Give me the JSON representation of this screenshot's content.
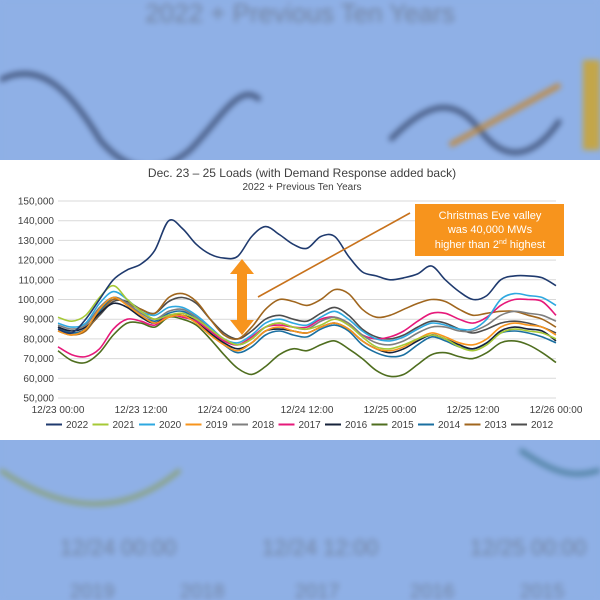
{
  "background": {
    "title": "2022 + Previous Ten Years",
    "ticks": [
      "12/24 00:00",
      "12/24 12:00",
      "12/25 00:00"
    ],
    "legend": [
      "2019",
      "2018",
      "2017",
      "2016",
      "2015"
    ]
  },
  "annotation": {
    "line1": "Christmas Eve valley",
    "line2": "was 40,000 MWs",
    "line3_pre": "higher than 2",
    "line3_sup": "nd",
    "line3_post": " highest",
    "fill": "#f7941d",
    "arrow_color": "#f7941d",
    "leader_color": "#c8721c"
  },
  "chart_data": {
    "type": "line",
    "title": "Dec. 23 – 25 Loads (with Demand Response added back)",
    "subtitle": "2022 + Previous Ten Years",
    "ylim": [
      50000,
      150000
    ],
    "yticks": [
      "150,000",
      "140,000",
      "130,000",
      "120,000",
      "110,000",
      "100,000",
      "90,000",
      "80,000",
      "70,000",
      "60,000",
      "50,000"
    ],
    "ytick_values": [
      150000,
      140000,
      130000,
      120000,
      110000,
      100000,
      90000,
      80000,
      70000,
      60000,
      50000
    ],
    "xlim": [
      0,
      72
    ],
    "xticks": [
      "12/23 00:00",
      "12/23 12:00",
      "12/24 00:00",
      "12/24 12:00",
      "12/25 00:00",
      "12/25 12:00",
      "12/26 00:00"
    ],
    "xtick_values": [
      0,
      12,
      24,
      36,
      48,
      60,
      72
    ],
    "x": [
      0,
      2,
      4,
      6,
      8,
      10,
      12,
      14,
      16,
      18,
      20,
      22,
      24,
      26,
      28,
      30,
      32,
      34,
      36,
      38,
      40,
      42,
      44,
      46,
      48,
      50,
      52,
      54,
      56,
      58,
      60,
      62,
      64,
      66,
      68,
      70,
      72
    ],
    "series": [
      {
        "name": "2022",
        "color": "#1f3a6e",
        "values": [
          85000,
          83000,
          90000,
          100000,
          110000,
          115000,
          118000,
          125000,
          140000,
          136000,
          128000,
          123000,
          121000,
          122000,
          132000,
          137000,
          133000,
          128000,
          126000,
          132000,
          132000,
          122000,
          114000,
          112000,
          110000,
          111000,
          113000,
          117000,
          110000,
          104000,
          100000,
          102000,
          110000,
          112000,
          112000,
          111000,
          107000
        ]
      },
      {
        "name": "2021",
        "color": "#a6c936",
        "values": [
          91000,
          89000,
          92000,
          101000,
          107000,
          100000,
          94000,
          90000,
          92000,
          93000,
          90000,
          85000,
          80000,
          77000,
          80000,
          86000,
          88000,
          86000,
          85000,
          87000,
          90000,
          87000,
          81000,
          76000,
          75000,
          77000,
          80000,
          82000,
          80000,
          76000,
          74000,
          77000,
          83000,
          85000,
          84000,
          83000,
          80000
        ]
      },
      {
        "name": "2020",
        "color": "#2ea8e0",
        "values": [
          88000,
          86000,
          88000,
          98000,
          104000,
          100000,
          94000,
          92000,
          96000,
          96000,
          92000,
          86000,
          80000,
          78000,
          82000,
          88000,
          90000,
          88000,
          87000,
          91000,
          94000,
          90000,
          84000,
          80000,
          79000,
          81000,
          85000,
          88000,
          87000,
          85000,
          85000,
          90000,
          100000,
          103000,
          102000,
          101000,
          97000
        ]
      },
      {
        "name": "2019",
        "color": "#f7941d",
        "values": [
          84000,
          82000,
          85000,
          95000,
          101000,
          97000,
          92000,
          88000,
          91000,
          92000,
          88000,
          82000,
          77000,
          74000,
          78000,
          84000,
          86000,
          84000,
          83000,
          86000,
          88000,
          85000,
          79000,
          75000,
          74000,
          76000,
          80000,
          83000,
          81000,
          78000,
          77000,
          80000,
          86000,
          88000,
          87000,
          86000,
          82000
        ]
      },
      {
        "name": "2018",
        "color": "#7f7f7f",
        "values": [
          87000,
          85000,
          87000,
          96000,
          101000,
          98000,
          93000,
          90000,
          94000,
          95000,
          91000,
          85000,
          80000,
          77000,
          80000,
          86000,
          88000,
          86000,
          85000,
          89000,
          91000,
          88000,
          82000,
          78000,
          77000,
          79000,
          83000,
          86000,
          86000,
          84000,
          84000,
          87000,
          92000,
          94000,
          93000,
          92000,
          89000
        ]
      },
      {
        "name": "2017",
        "color": "#e6197a",
        "values": [
          76000,
          72000,
          71000,
          75000,
          85000,
          90000,
          89000,
          87000,
          92000,
          91000,
          89000,
          84000,
          79000,
          77000,
          81000,
          86000,
          87000,
          86000,
          86000,
          90000,
          91000,
          87000,
          82000,
          80000,
          81000,
          84000,
          89000,
          93000,
          93000,
          90000,
          88000,
          91000,
          97000,
          100000,
          100000,
          99000,
          92000
        ]
      },
      {
        "name": "2016",
        "color": "#16223a",
        "values": [
          86000,
          84000,
          86000,
          93000,
          98000,
          96000,
          91000,
          88000,
          92000,
          92000,
          89000,
          83000,
          78000,
          75000,
          78000,
          84000,
          85000,
          84000,
          83000,
          86000,
          88000,
          85000,
          79000,
          75000,
          73000,
          75000,
          79000,
          82000,
          80000,
          77000,
          75000,
          78000,
          84000,
          86000,
          85000,
          84000,
          79000
        ]
      },
      {
        "name": "2015",
        "color": "#4f6e1f",
        "values": [
          74000,
          69000,
          68000,
          73000,
          82000,
          88000,
          88000,
          86000,
          91000,
          90000,
          87000,
          80000,
          72000,
          65000,
          62000,
          66000,
          72000,
          75000,
          74000,
          77000,
          79000,
          75000,
          70000,
          64000,
          61000,
          62000,
          67000,
          72000,
          73000,
          71000,
          70000,
          73000,
          78000,
          79000,
          77000,
          73000,
          68000
        ]
      },
      {
        "name": "2014",
        "color": "#1a6fa0",
        "values": [
          85000,
          83000,
          85000,
          94000,
          101000,
          98000,
          92000,
          89000,
          93000,
          94000,
          90000,
          83000,
          77000,
          73000,
          76000,
          82000,
          84000,
          82000,
          81000,
          85000,
          87000,
          84000,
          77000,
          73000,
          71000,
          72000,
          77000,
          81000,
          79000,
          76000,
          75000,
          78000,
          83000,
          84000,
          83000,
          81000,
          78000
        ]
      },
      {
        "name": "2013",
        "color": "#a0661e",
        "values": [
          84000,
          82000,
          84000,
          93000,
          100000,
          98000,
          95000,
          93000,
          101000,
          103000,
          99000,
          90000,
          82000,
          80000,
          86000,
          95000,
          100000,
          99000,
          97000,
          100000,
          105000,
          103000,
          95000,
          91000,
          92000,
          95000,
          98000,
          100000,
          99000,
          95000,
          92000,
          93000,
          94000,
          94000,
          92000,
          90000,
          86000
        ]
      },
      {
        "name": "2012",
        "color": "#4d4d4d",
        "values": [
          86000,
          83000,
          85000,
          92000,
          99000,
          99000,
          95000,
          93000,
          99000,
          101000,
          98000,
          90000,
          83000,
          80000,
          84000,
          90000,
          92000,
          90000,
          89000,
          93000,
          96000,
          92000,
          85000,
          81000,
          80000,
          82000,
          86000,
          89000,
          88000,
          85000,
          83000,
          85000,
          88000,
          89000,
          88000,
          86000,
          83000
        ]
      }
    ]
  }
}
